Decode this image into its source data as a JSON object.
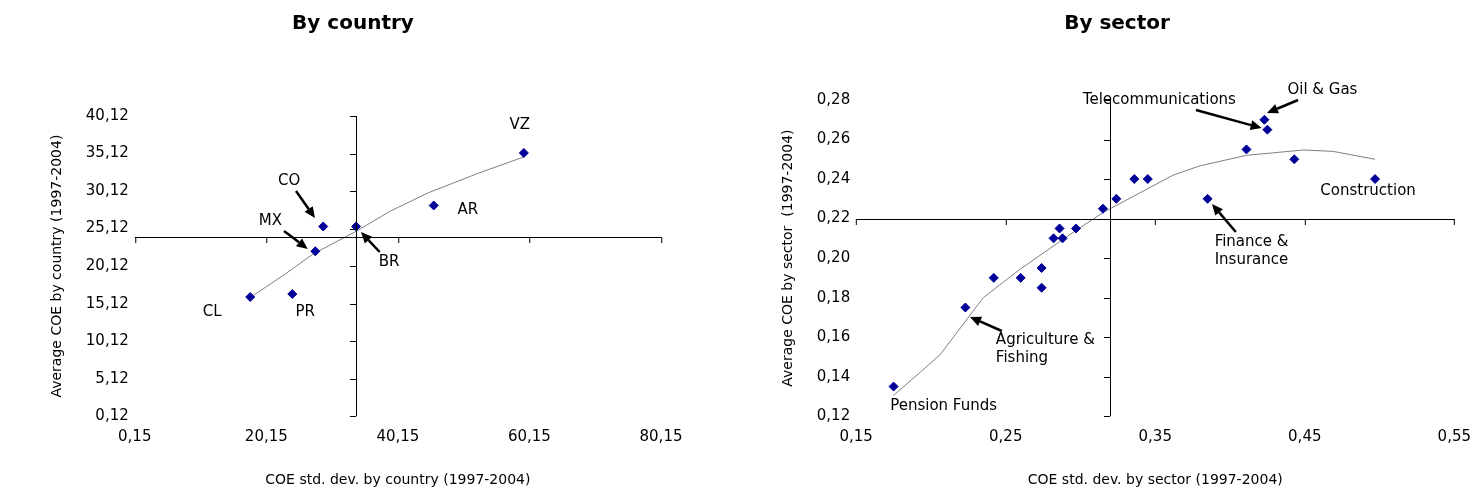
{
  "chart_data": [
    {
      "type": "scatter",
      "title": "By country",
      "xlabel": "COE std. dev. by country (1997-2004)",
      "ylabel": "Average COE by country (1997-2004)",
      "xlim": [
        0.15,
        80.15
      ],
      "xticks": [
        {
          "value": 0.15,
          "label": "0,15"
        },
        {
          "value": 20.15,
          "label": "20,15"
        },
        {
          "value": 40.15,
          "label": "40,15"
        },
        {
          "value": 60.15,
          "label": "60,15"
        },
        {
          "value": 80.15,
          "label": "80,15"
        }
      ],
      "ylim": [
        0.12,
        40.12
      ],
      "yticks": [
        {
          "value": 0.12,
          "label": "0,12"
        },
        {
          "value": 5.12,
          "label": "5,12"
        },
        {
          "value": 10.12,
          "label": "10,12"
        },
        {
          "value": 15.12,
          "label": "15,12"
        },
        {
          "value": 20.12,
          "label": "20,12"
        },
        {
          "value": 25.12,
          "label": "25,12"
        },
        {
          "value": 30.12,
          "label": "30,12"
        },
        {
          "value": 35.12,
          "label": "35,12"
        },
        {
          "value": 40.12,
          "label": "40,12"
        }
      ],
      "grid": false,
      "legend": false,
      "marker": "diamond",
      "ref_lines": [
        {
          "axis": "y",
          "value": 24.0,
          "color": "#000000"
        },
        {
          "axis": "x",
          "value": 33.8,
          "color": "#000000"
        }
      ],
      "series": [
        {
          "color": "#000099",
          "x": [
            17.7,
            24.1,
            27.6,
            28.8,
            33.8,
            45.6,
            59.3
          ],
          "values": [
            16.0,
            16.4,
            22.1,
            25.4,
            25.4,
            28.2,
            35.2
          ]
        },
        {
          "type": "line",
          "color": "#808080",
          "marker": "none",
          "line_style": "solid",
          "x": [
            17.8,
            23.1,
            27.2,
            33.9,
            38.9,
            44.8,
            52.4,
            59.4
          ],
          "values": [
            16.0,
            19.1,
            21.7,
            24.8,
            27.4,
            29.9,
            32.5,
            34.7
          ]
        }
      ],
      "annotations": [
        {
          "text": "VZ",
          "x": 59.3,
          "y": 35.2
        },
        {
          "text": "AR",
          "x": 45.6,
          "y": 28.2
        },
        {
          "text": "CO",
          "x": 28.8,
          "y": 25.4
        },
        {
          "text": "MX",
          "x": 27.6,
          "y": 22.1
        },
        {
          "text": "BR",
          "x": 33.8,
          "y": 25.4
        },
        {
          "text": "CL",
          "x": 17.7,
          "y": 16.0
        },
        {
          "text": "PR",
          "x": 24.1,
          "y": 16.4
        }
      ]
    },
    {
      "type": "scatter",
      "title": "By sector",
      "xlabel": "COE std. dev. by sector (1997-2004)",
      "ylabel": "Average COE by sector  (1997-2004)",
      "xlim": [
        0.15,
        0.55
      ],
      "xticks": [
        {
          "value": 0.15,
          "label": "0,15"
        },
        {
          "value": 0.25,
          "label": "0,25"
        },
        {
          "value": 0.35,
          "label": "0,35"
        },
        {
          "value": 0.45,
          "label": "0,45"
        },
        {
          "value": 0.55,
          "label": "0,55"
        }
      ],
      "ylim": [
        0.12,
        0.28
      ],
      "yticks": [
        {
          "value": 0.12,
          "label": "0,12"
        },
        {
          "value": 0.14,
          "label": "0,14"
        },
        {
          "value": 0.16,
          "label": "0,16"
        },
        {
          "value": 0.18,
          "label": "0,18"
        },
        {
          "value": 0.2,
          "label": "0,20"
        },
        {
          "value": 0.22,
          "label": "0,22"
        },
        {
          "value": 0.24,
          "label": "0,24"
        },
        {
          "value": 0.26,
          "label": "0,26"
        },
        {
          "value": 0.28,
          "label": "0,28"
        }
      ],
      "grid": false,
      "legend": false,
      "marker": "diamond",
      "ref_lines": [
        {
          "axis": "y",
          "value": 0.22,
          "color": "#000000"
        },
        {
          "axis": "x",
          "value": 0.32,
          "color": "#000000"
        }
      ],
      "series": [
        {
          "color": "#000099",
          "x": [
            0.175,
            0.223,
            0.242,
            0.26,
            0.274,
            0.274,
            0.282,
            0.286,
            0.288,
            0.297,
            0.315,
            0.324,
            0.336,
            0.345,
            0.385,
            0.411,
            0.423,
            0.425,
            0.443,
            0.497
          ],
          "values": [
            0.135,
            0.175,
            0.19,
            0.19,
            0.195,
            0.185,
            0.21,
            0.215,
            0.21,
            0.215,
            0.225,
            0.23,
            0.24,
            0.24,
            0.23,
            0.255,
            0.27,
            0.265,
            0.25,
            0.24
          ]
        },
        {
          "type": "line",
          "color": "#808080",
          "marker": "none",
          "line_style": "solid",
          "x": [
            0.175,
            0.206,
            0.235,
            0.26,
            0.295,
            0.315,
            0.362,
            0.38,
            0.411,
            0.449,
            0.469,
            0.497
          ],
          "values": [
            0.1305,
            0.151,
            0.18,
            0.1946,
            0.213,
            0.223,
            0.242,
            0.2467,
            0.252,
            0.2547,
            0.254,
            0.25
          ]
        }
      ],
      "annotations": [
        {
          "text": "Telecommunications",
          "x": 0.425,
          "y": 0.265
        },
        {
          "text": "Oil & Gas",
          "x": 0.423,
          "y": 0.27
        },
        {
          "text": "Construction",
          "x": 0.497,
          "y": 0.24
        },
        {
          "text": "Finance & Insurance",
          "x": 0.385,
          "y": 0.23
        },
        {
          "text": "Agriculture & Fishing",
          "x": 0.223,
          "y": 0.175
        },
        {
          "text": "Pension Funds",
          "x": 0.175,
          "y": 0.135
        }
      ]
    }
  ]
}
